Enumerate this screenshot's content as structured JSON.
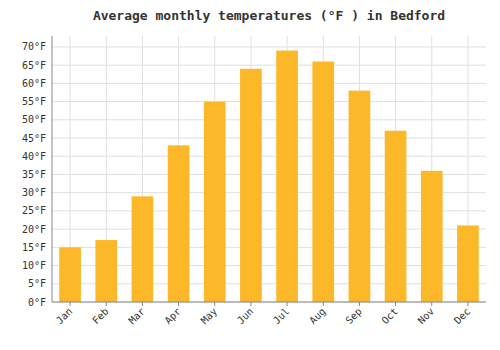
{
  "chart_data": {
    "type": "bar",
    "title": "Average monthly temperatures (°F ) in Bedford",
    "categories": [
      "Jan",
      "Feb",
      "Mar",
      "Apr",
      "May",
      "Jun",
      "Jul",
      "Aug",
      "Sep",
      "Oct",
      "Nov",
      "Dec"
    ],
    "values": [
      15,
      17,
      29,
      43,
      55,
      64,
      69,
      66,
      58,
      47,
      36,
      21
    ],
    "color": "#FDB829",
    "ylim": [
      0,
      73
    ],
    "yticks": [
      {
        "value": 0,
        "label": "0°F"
      },
      {
        "value": 5,
        "label": "5°F"
      },
      {
        "value": 10,
        "label": "10°F"
      },
      {
        "value": 15,
        "label": "15°F"
      },
      {
        "value": 20,
        "label": "20°F"
      },
      {
        "value": 25,
        "label": "25°F"
      },
      {
        "value": 30,
        "label": "30°F"
      },
      {
        "value": 35,
        "label": "35°F"
      },
      {
        "value": 40,
        "label": "40°F"
      },
      {
        "value": 45,
        "label": "45°F"
      },
      {
        "value": 50,
        "label": "50°F"
      },
      {
        "value": 55,
        "label": "55°F"
      },
      {
        "value": 60,
        "label": "60°F"
      },
      {
        "value": 65,
        "label": "65°F"
      },
      {
        "value": 70,
        "label": "70°F"
      }
    ],
    "grid": true
  }
}
